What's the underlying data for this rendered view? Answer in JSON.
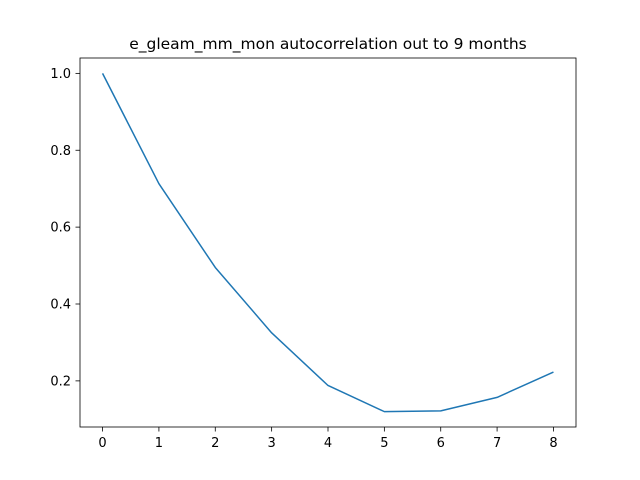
{
  "chart_data": {
    "type": "line",
    "title": "e_gleam_mm_mon autocorrelation out to 9 months",
    "xlabel": "",
    "ylabel": "",
    "x": [
      0,
      1,
      2,
      3,
      4,
      5,
      6,
      7,
      8
    ],
    "series": [
      {
        "color": "#1f77b4",
        "values": [
          1.0,
          0.713,
          0.495,
          0.325,
          0.188,
          0.12,
          0.122,
          0.157,
          0.223
        ]
      }
    ],
    "xlim": [
      -0.4,
      8.4
    ],
    "ylim": [
      0.08,
      1.04
    ],
    "xticks": [
      0,
      1,
      2,
      3,
      4,
      5,
      6,
      7,
      8
    ],
    "yticks": [
      0.2,
      0.4,
      0.6,
      0.8,
      1.0
    ],
    "ytick_labels": [
      "0.2",
      "0.4",
      "0.6",
      "0.8",
      "1.0"
    ],
    "grid": false,
    "legend": "none"
  }
}
